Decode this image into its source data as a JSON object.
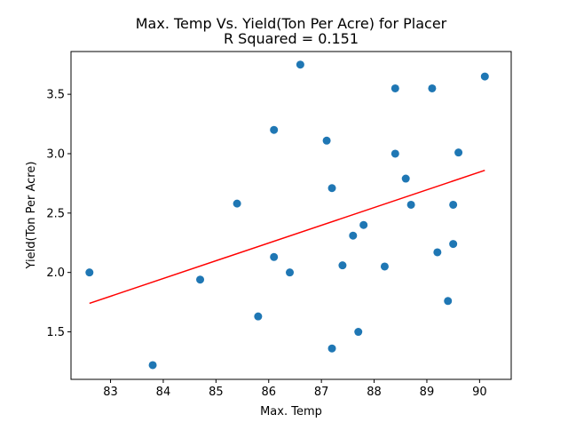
{
  "chart_data": {
    "type": "scatter",
    "title": "Max. Temp Vs. Yield(Ton Per Acre) for Placer",
    "subtitle": "R Squared =  0.151",
    "xlabel": "Max. Temp",
    "ylabel": "Yield(Ton Per Acre)",
    "xlim": [
      82.25,
      90.6
    ],
    "ylim": [
      1.1,
      3.86
    ],
    "xticks": [
      "83",
      "84",
      "85",
      "86",
      "87",
      "88",
      "89",
      "90"
    ],
    "xtick_values": [
      83,
      84,
      85,
      86,
      87,
      88,
      89,
      90
    ],
    "yticks": [
      "1.5",
      "2.0",
      "2.5",
      "3.0",
      "3.5"
    ],
    "ytick_values": [
      1.5,
      2.0,
      2.5,
      3.0,
      3.5
    ],
    "grid": false,
    "legend": "none",
    "series": [
      {
        "kind": "scatter",
        "color": "#1f77b4",
        "points": [
          {
            "x": 82.6,
            "y": 2.0
          },
          {
            "x": 83.8,
            "y": 1.22
          },
          {
            "x": 84.7,
            "y": 1.94
          },
          {
            "x": 85.4,
            "y": 2.58
          },
          {
            "x": 85.8,
            "y": 1.63
          },
          {
            "x": 86.1,
            "y": 3.2
          },
          {
            "x": 86.1,
            "y": 2.13
          },
          {
            "x": 86.4,
            "y": 2.0
          },
          {
            "x": 86.6,
            "y": 3.75
          },
          {
            "x": 87.1,
            "y": 3.11
          },
          {
            "x": 87.2,
            "y": 2.71
          },
          {
            "x": 87.2,
            "y": 1.36
          },
          {
            "x": 87.4,
            "y": 2.06
          },
          {
            "x": 87.6,
            "y": 2.31
          },
          {
            "x": 87.7,
            "y": 1.5
          },
          {
            "x": 87.8,
            "y": 2.4
          },
          {
            "x": 88.2,
            "y": 2.05
          },
          {
            "x": 88.4,
            "y": 3.55
          },
          {
            "x": 88.4,
            "y": 3.0
          },
          {
            "x": 88.6,
            "y": 2.79
          },
          {
            "x": 88.7,
            "y": 2.57
          },
          {
            "x": 89.1,
            "y": 3.55
          },
          {
            "x": 89.2,
            "y": 2.17
          },
          {
            "x": 89.4,
            "y": 1.76
          },
          {
            "x": 89.5,
            "y": 2.57
          },
          {
            "x": 89.5,
            "y": 2.24
          },
          {
            "x": 89.6,
            "y": 3.01
          },
          {
            "x": 90.1,
            "y": 3.65
          }
        ]
      },
      {
        "kind": "line",
        "color": "#ff0000",
        "points": [
          {
            "x": 82.6,
            "y": 1.74
          },
          {
            "x": 90.1,
            "y": 2.86
          }
        ]
      }
    ]
  }
}
